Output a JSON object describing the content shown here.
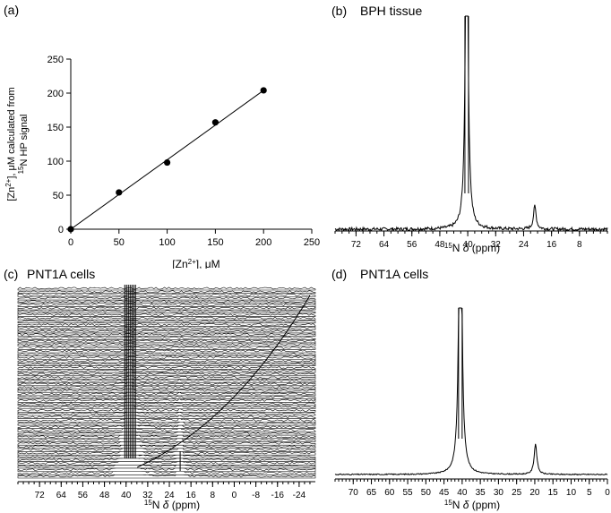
{
  "panels": {
    "a": {
      "label": "(a)"
    },
    "b": {
      "label": "(b)",
      "title": "BPH tissue"
    },
    "c": {
      "label": "(c)",
      "title": "PNT1A cells"
    },
    "d": {
      "label": "(d)",
      "title": "PNT1A cells"
    }
  },
  "chart_data": [
    {
      "panel": "a",
      "type": "scatter",
      "xlabel": "[Zn2+], μM",
      "ylabel": "[Zn2+], μM calculated from 15N HP signal",
      "xlim": [
        0,
        250
      ],
      "ylim": [
        0,
        250
      ],
      "xticks": [
        "0",
        "50",
        "100",
        "150",
        "200",
        "250"
      ],
      "yticks": [
        "0",
        "50",
        "100",
        "150",
        "200",
        "250"
      ],
      "x": [
        0,
        50,
        100,
        150,
        200
      ],
      "y": [
        0,
        54,
        98,
        157,
        204
      ],
      "fit_line": {
        "x": [
          0,
          200
        ],
        "y": [
          0,
          204
        ]
      },
      "grid": false
    },
    {
      "panel": "b",
      "type": "line",
      "xlabel": "15N δ (ppm)",
      "xlim": [
        78,
        0
      ],
      "xticks": [
        "72",
        "64",
        "56",
        "48",
        "40",
        "32",
        "24",
        "16",
        "8"
      ],
      "peaks": [
        {
          "ppm": 40.3,
          "intensity": 1.0,
          "clipped": true
        },
        {
          "ppm": 20.8,
          "intensity": 0.13
        }
      ],
      "grid": false
    },
    {
      "panel": "c",
      "type": "line",
      "xlabel": "15N δ (ppm)",
      "xlim": [
        80,
        -30
      ],
      "xticks": [
        "72",
        "64",
        "56",
        "48",
        "40",
        "32",
        "24",
        "16",
        "8",
        "0",
        "-8",
        "-16",
        "-24"
      ],
      "peaks": [
        {
          "ppm": 38.5,
          "intensity": 1.0,
          "clipped": true
        },
        {
          "ppm": 20,
          "intensity": 0.15
        }
      ],
      "stacked_spectra": true,
      "grid": false
    },
    {
      "panel": "d",
      "type": "line",
      "xlabel": "15N δ (ppm)",
      "xlim": [
        75,
        0
      ],
      "xticks": [
        "70",
        "65",
        "60",
        "55",
        "50",
        "45",
        "40",
        "35",
        "30",
        "25",
        "20",
        "15",
        "10",
        "5",
        "0"
      ],
      "peaks": [
        {
          "ppm": 40.5,
          "intensity": 1.0,
          "clipped": true
        },
        {
          "ppm": 19.8,
          "intensity": 0.2
        }
      ],
      "grid": false
    }
  ]
}
